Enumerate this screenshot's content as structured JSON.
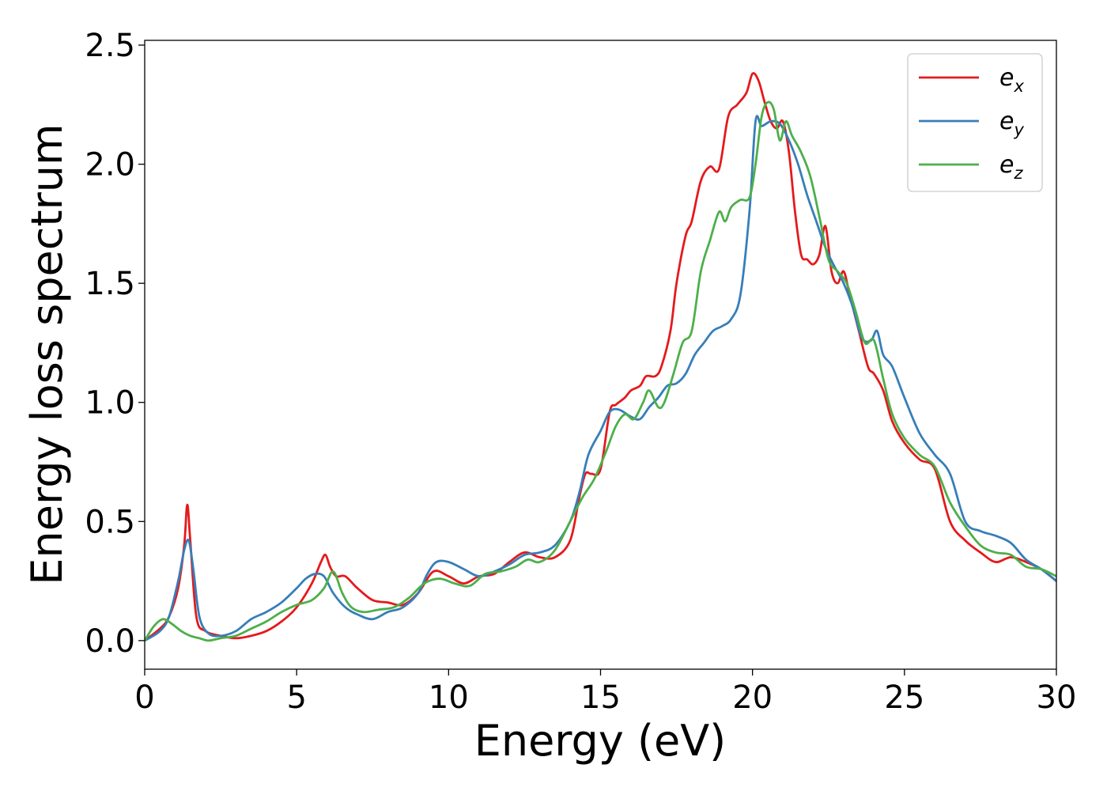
{
  "chart_data": {
    "type": "line",
    "title": "",
    "xlabel": "Energy (eV)",
    "ylabel": "Energy loss spectrum",
    "xlim": [
      0,
      30
    ],
    "ylim": [
      -0.12,
      2.52
    ],
    "xticks": [
      0,
      5,
      10,
      15,
      20,
      25,
      30
    ],
    "xtick_labels": [
      "0",
      "5",
      "10",
      "15",
      "20",
      "25",
      "30"
    ],
    "yticks": [
      0.0,
      0.5,
      1.0,
      1.5,
      2.0,
      2.5
    ],
    "ytick_labels": [
      "0.0",
      "0.5",
      "1.0",
      "1.5",
      "2.0",
      "2.5"
    ],
    "grid": false,
    "legend": {
      "position": "top-right",
      "entries": [
        {
          "base": "e",
          "sub": "x",
          "color": "#e41a1c"
        },
        {
          "base": "e",
          "sub": "y",
          "color": "#377eb8"
        },
        {
          "base": "e",
          "sub": "z",
          "color": "#4daf4a"
        }
      ]
    },
    "series": [
      {
        "name": "e_x",
        "color": "#e41a1c",
        "x": [
          0,
          0.5,
          0.8,
          1.1,
          1.3,
          1.4,
          1.5,
          1.7,
          2.0,
          2.5,
          3,
          3.5,
          4,
          4.5,
          5,
          5.5,
          5.8,
          5.95,
          6.1,
          6.3,
          6.6,
          7,
          7.5,
          8,
          8.5,
          9,
          9.5,
          10,
          10.5,
          11,
          11.5,
          12,
          12.5,
          13,
          13.5,
          14,
          14.3,
          14.5,
          14.7,
          15,
          15.3,
          15.5,
          15.8,
          16,
          16.3,
          16.5,
          16.8,
          17,
          17.3,
          17.5,
          17.8,
          18,
          18.3,
          18.6,
          18.9,
          19.2,
          19.5,
          19.8,
          20.0,
          20.2,
          20.4,
          20.6,
          20.8,
          21.0,
          21.2,
          21.4,
          21.6,
          21.8,
          22.0,
          22.2,
          22.4,
          22.6,
          22.8,
          23.0,
          23.2,
          23.5,
          23.8,
          24.0,
          24.3,
          24.6,
          25,
          25.5,
          26,
          26.5,
          27,
          27.5,
          28,
          28.5,
          29,
          29.5,
          30
        ],
        "y": [
          0.0,
          0.05,
          0.1,
          0.22,
          0.4,
          0.57,
          0.42,
          0.1,
          0.04,
          0.02,
          0.01,
          0.02,
          0.04,
          0.08,
          0.14,
          0.24,
          0.33,
          0.36,
          0.31,
          0.27,
          0.27,
          0.22,
          0.17,
          0.16,
          0.15,
          0.2,
          0.29,
          0.27,
          0.24,
          0.27,
          0.28,
          0.33,
          0.37,
          0.35,
          0.35,
          0.42,
          0.6,
          0.7,
          0.7,
          0.72,
          0.96,
          0.99,
          1.02,
          1.05,
          1.07,
          1.11,
          1.11,
          1.15,
          1.3,
          1.5,
          1.7,
          1.76,
          1.93,
          1.99,
          1.98,
          2.2,
          2.25,
          2.3,
          2.38,
          2.35,
          2.26,
          2.18,
          2.15,
          2.18,
          2.05,
          1.8,
          1.62,
          1.6,
          1.58,
          1.62,
          1.74,
          1.55,
          1.5,
          1.55,
          1.45,
          1.3,
          1.15,
          1.12,
          1.05,
          0.92,
          0.83,
          0.76,
          0.72,
          0.5,
          0.42,
          0.37,
          0.33,
          0.35,
          0.33,
          0.3,
          0.25
        ]
      },
      {
        "name": "e_y",
        "color": "#377eb8",
        "x": [
          0,
          0.5,
          0.8,
          1.1,
          1.3,
          1.45,
          1.6,
          1.8,
          2.1,
          2.5,
          3,
          3.5,
          4,
          4.5,
          5,
          5.3,
          5.6,
          5.9,
          6.2,
          6.6,
          7,
          7.5,
          8,
          8.5,
          9,
          9.3,
          9.6,
          10,
          10.5,
          11,
          11.5,
          12,
          12.5,
          13,
          13.5,
          14,
          14.3,
          14.6,
          15,
          15.3,
          15.6,
          16,
          16.3,
          16.6,
          16.9,
          17.2,
          17.5,
          17.8,
          18.1,
          18.4,
          18.7,
          19.0,
          19.3,
          19.6,
          19.9,
          20.1,
          20.3,
          20.6,
          20.9,
          21.2,
          21.5,
          21.8,
          22.1,
          22.4,
          22.7,
          23.0,
          23.3,
          23.6,
          23.9,
          24.1,
          24.3,
          24.6,
          25,
          25.5,
          26,
          26.5,
          27,
          27.5,
          28,
          28.5,
          29,
          29.5,
          30
        ],
        "y": [
          0.0,
          0.04,
          0.1,
          0.25,
          0.38,
          0.42,
          0.3,
          0.1,
          0.03,
          0.02,
          0.04,
          0.09,
          0.12,
          0.16,
          0.22,
          0.26,
          0.28,
          0.27,
          0.2,
          0.14,
          0.11,
          0.09,
          0.12,
          0.14,
          0.2,
          0.28,
          0.33,
          0.33,
          0.3,
          0.27,
          0.29,
          0.32,
          0.36,
          0.37,
          0.4,
          0.5,
          0.62,
          0.78,
          0.88,
          0.96,
          0.97,
          0.94,
          0.93,
          0.98,
          1.02,
          1.07,
          1.08,
          1.12,
          1.2,
          1.25,
          1.3,
          1.32,
          1.35,
          1.45,
          1.8,
          2.18,
          2.16,
          2.18,
          2.17,
          2.1,
          2.0,
          1.87,
          1.76,
          1.65,
          1.57,
          1.5,
          1.4,
          1.27,
          1.26,
          1.3,
          1.2,
          1.15,
          1.02,
          0.87,
          0.78,
          0.7,
          0.5,
          0.46,
          0.44,
          0.41,
          0.34,
          0.3,
          0.25
        ]
      },
      {
        "name": "e_z",
        "color": "#4daf4a",
        "x": [
          0,
          0.3,
          0.6,
          0.9,
          1.2,
          1.5,
          1.8,
          2.1,
          2.5,
          3,
          3.5,
          4,
          4.5,
          5,
          5.5,
          5.9,
          6.2,
          6.5,
          6.8,
          7.2,
          7.7,
          8.2,
          8.7,
          9.2,
          9.7,
          10.2,
          10.7,
          11.2,
          11.7,
          12.2,
          12.6,
          13.0,
          13.5,
          14,
          14.4,
          14.8,
          15.2,
          15.5,
          15.8,
          16.1,
          16.4,
          16.6,
          16.9,
          17.1,
          17.4,
          17.7,
          18.0,
          18.3,
          18.6,
          18.9,
          19.1,
          19.3,
          19.6,
          19.9,
          20.1,
          20.3,
          20.5,
          20.7,
          20.9,
          21.1,
          21.3,
          21.6,
          21.9,
          22.2,
          22.5,
          22.8,
          23.1,
          23.4,
          23.7,
          24.0,
          24.3,
          24.6,
          25,
          25.5,
          26,
          26.5,
          27,
          27.5,
          28,
          28.5,
          29,
          29.5,
          30
        ],
        "y": [
          0.0,
          0.06,
          0.09,
          0.07,
          0.04,
          0.02,
          0.01,
          0.0,
          0.01,
          0.02,
          0.05,
          0.08,
          0.12,
          0.15,
          0.17,
          0.22,
          0.29,
          0.2,
          0.14,
          0.12,
          0.13,
          0.14,
          0.18,
          0.24,
          0.26,
          0.24,
          0.23,
          0.28,
          0.29,
          0.31,
          0.34,
          0.33,
          0.38,
          0.5,
          0.6,
          0.68,
          0.8,
          0.9,
          0.95,
          0.93,
          1.0,
          1.05,
          0.98,
          1.0,
          1.12,
          1.25,
          1.3,
          1.55,
          1.68,
          1.8,
          1.76,
          1.82,
          1.85,
          1.86,
          2.0,
          2.2,
          2.26,
          2.23,
          2.1,
          2.18,
          2.12,
          2.05,
          1.95,
          1.78,
          1.6,
          1.55,
          1.5,
          1.38,
          1.25,
          1.26,
          1.1,
          0.95,
          0.85,
          0.78,
          0.73,
          0.58,
          0.48,
          0.4,
          0.37,
          0.36,
          0.31,
          0.3,
          0.27
        ]
      }
    ]
  }
}
